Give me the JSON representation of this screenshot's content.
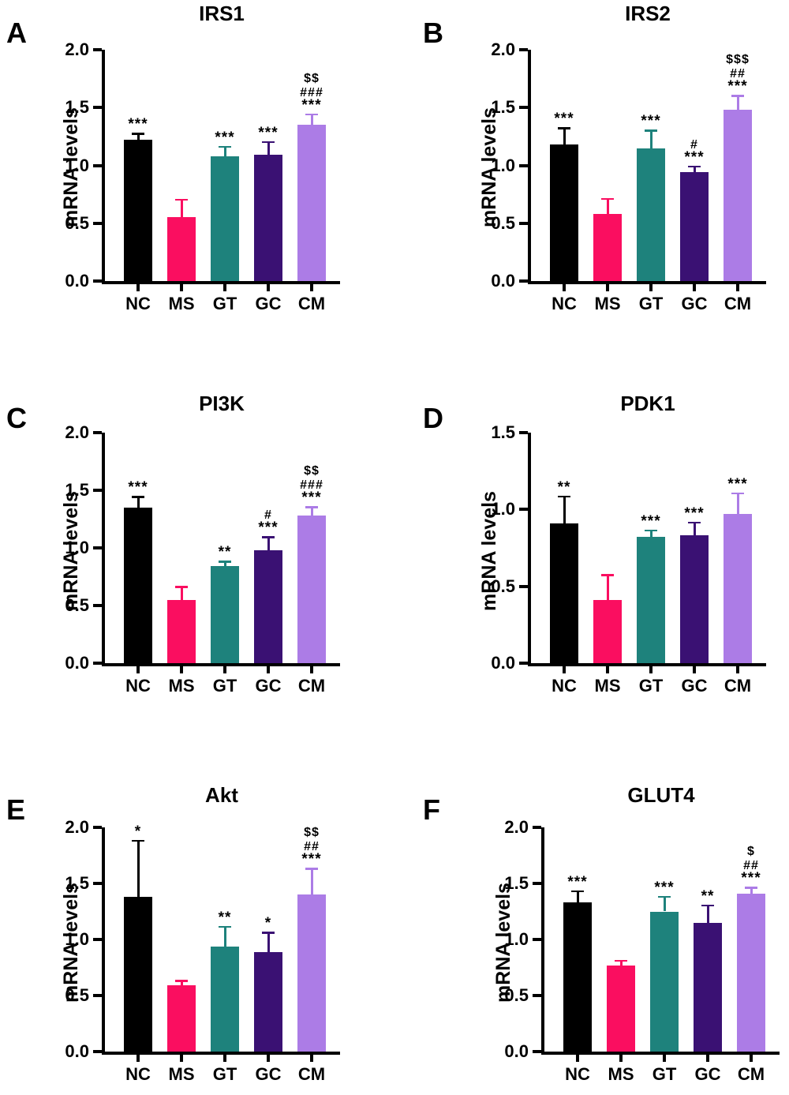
{
  "figure": {
    "ylabel": "mRNA levels",
    "categories": [
      "NC",
      "MS",
      "GT",
      "GC",
      "CM"
    ]
  },
  "colors": {
    "axis": "#000000",
    "bars": [
      "#000000",
      "#FA0E60",
      "#1E827C",
      "#3A1173",
      "#AC7CE6"
    ]
  },
  "chart_data": [
    {
      "type": "bar",
      "panel": "A",
      "title": "IRS1",
      "ylabel": "mRNA levels",
      "categories": [
        "NC",
        "MS",
        "GT",
        "GC",
        "CM"
      ],
      "values": [
        1.22,
        0.55,
        1.08,
        1.09,
        1.35
      ],
      "errors_upper": [
        0.06,
        0.16,
        0.09,
        0.12,
        0.1
      ],
      "annotations": [
        [
          "***"
        ],
        [],
        [
          "***"
        ],
        [
          "***"
        ],
        [
          "$$",
          "###",
          "***"
        ]
      ],
      "bar_colors": [
        "#000000",
        "#FA0E60",
        "#1E827C",
        "#3A1173",
        "#AC7CE6"
      ],
      "ylim": [
        0,
        2.0
      ],
      "yticks": [
        "0.0",
        "0.5",
        "1.0",
        "1.5",
        "2.0"
      ],
      "grid": "off",
      "legend": "none"
    },
    {
      "type": "bar",
      "panel": "B",
      "title": "IRS2",
      "ylabel": "mRNA levels",
      "categories": [
        "NC",
        "MS",
        "GT",
        "GC",
        "CM"
      ],
      "values": [
        1.18,
        0.58,
        1.15,
        0.94,
        1.48
      ],
      "errors_upper": [
        0.15,
        0.14,
        0.16,
        0.06,
        0.13
      ],
      "annotations": [
        [
          "***"
        ],
        [],
        [
          "***"
        ],
        [
          "#",
          "***"
        ],
        [
          "$$$",
          "##",
          "***"
        ]
      ],
      "bar_colors": [
        "#000000",
        "#FA0E60",
        "#1E827C",
        "#3A1173",
        "#AC7CE6"
      ],
      "ylim": [
        0,
        2.0
      ],
      "yticks": [
        "0.0",
        "0.5",
        "1.0",
        "1.5",
        "2.0"
      ],
      "grid": "off",
      "legend": "none"
    },
    {
      "type": "bar",
      "panel": "C",
      "title": "PI3K",
      "ylabel": "mRNA levels",
      "categories": [
        "NC",
        "MS",
        "GT",
        "GC",
        "CM"
      ],
      "values": [
        1.35,
        0.55,
        0.84,
        0.98,
        1.28
      ],
      "errors_upper": [
        0.1,
        0.12,
        0.05,
        0.12,
        0.08
      ],
      "annotations": [
        [
          "***"
        ],
        [],
        [
          "**"
        ],
        [
          "#",
          "***"
        ],
        [
          "$$",
          "###",
          "***"
        ]
      ],
      "bar_colors": [
        "#000000",
        "#FA0E60",
        "#1E827C",
        "#3A1173",
        "#AC7CE6"
      ],
      "ylim": [
        0,
        2.0
      ],
      "yticks": [
        "0.0",
        "0.5",
        "1.0",
        "1.5",
        "2.0"
      ],
      "grid": "off",
      "legend": "none"
    },
    {
      "type": "bar",
      "panel": "D",
      "title": "PDK1",
      "ylabel": "mRNA levels",
      "categories": [
        "NC",
        "MS",
        "GT",
        "GC",
        "CM"
      ],
      "values": [
        0.91,
        0.41,
        0.82,
        0.83,
        0.97
      ],
      "errors_upper": [
        0.18,
        0.17,
        0.05,
        0.09,
        0.14
      ],
      "annotations": [
        [
          "**"
        ],
        [],
        [
          "***"
        ],
        [
          "***"
        ],
        [
          "***"
        ]
      ],
      "bar_colors": [
        "#000000",
        "#FA0E60",
        "#1E827C",
        "#3A1173",
        "#AC7CE6"
      ],
      "ylim": [
        0,
        1.5
      ],
      "yticks": [
        "0.0",
        "0.5",
        "1.0",
        "1.5"
      ],
      "grid": "off",
      "legend": "none"
    },
    {
      "type": "bar",
      "panel": "E",
      "title": "Akt",
      "ylabel": "mRNA levels",
      "categories": [
        "NC",
        "MS",
        "GT",
        "GC",
        "CM"
      ],
      "values": [
        1.38,
        0.59,
        0.94,
        0.89,
        1.4
      ],
      "errors_upper": [
        0.51,
        0.05,
        0.18,
        0.18,
        0.24
      ],
      "annotations": [
        [
          "*"
        ],
        [],
        [
          "**"
        ],
        [
          "*"
        ],
        [
          "$$",
          "##",
          "***"
        ]
      ],
      "bar_colors": [
        "#000000",
        "#FA0E60",
        "#1E827C",
        "#3A1173",
        "#AC7CE6"
      ],
      "ylim": [
        0,
        2.0
      ],
      "yticks": [
        "0.0",
        "0.5",
        "1.0",
        "1.5",
        "2.0"
      ],
      "grid": "off",
      "legend": "none"
    },
    {
      "type": "bar",
      "panel": "F",
      "title": "GLUT4",
      "ylabel": "mRNA levels",
      "categories": [
        "NC",
        "MS",
        "GT",
        "GC",
        "CM"
      ],
      "values": [
        1.33,
        0.77,
        1.25,
        1.15,
        1.41
      ],
      "errors_upper": [
        0.11,
        0.05,
        0.14,
        0.16,
        0.06
      ],
      "annotations": [
        [
          "***"
        ],
        [],
        [
          "***"
        ],
        [
          "**"
        ],
        [
          "$",
          "##",
          "***"
        ]
      ],
      "bar_colors": [
        "#000000",
        "#FA0E60",
        "#1E827C",
        "#3A1173",
        "#AC7CE6"
      ],
      "ylim": [
        0,
        2.0
      ],
      "yticks": [
        "0.0",
        "0.5",
        "1.0",
        "1.5",
        "2.0"
      ],
      "grid": "off",
      "legend": "none"
    }
  ]
}
